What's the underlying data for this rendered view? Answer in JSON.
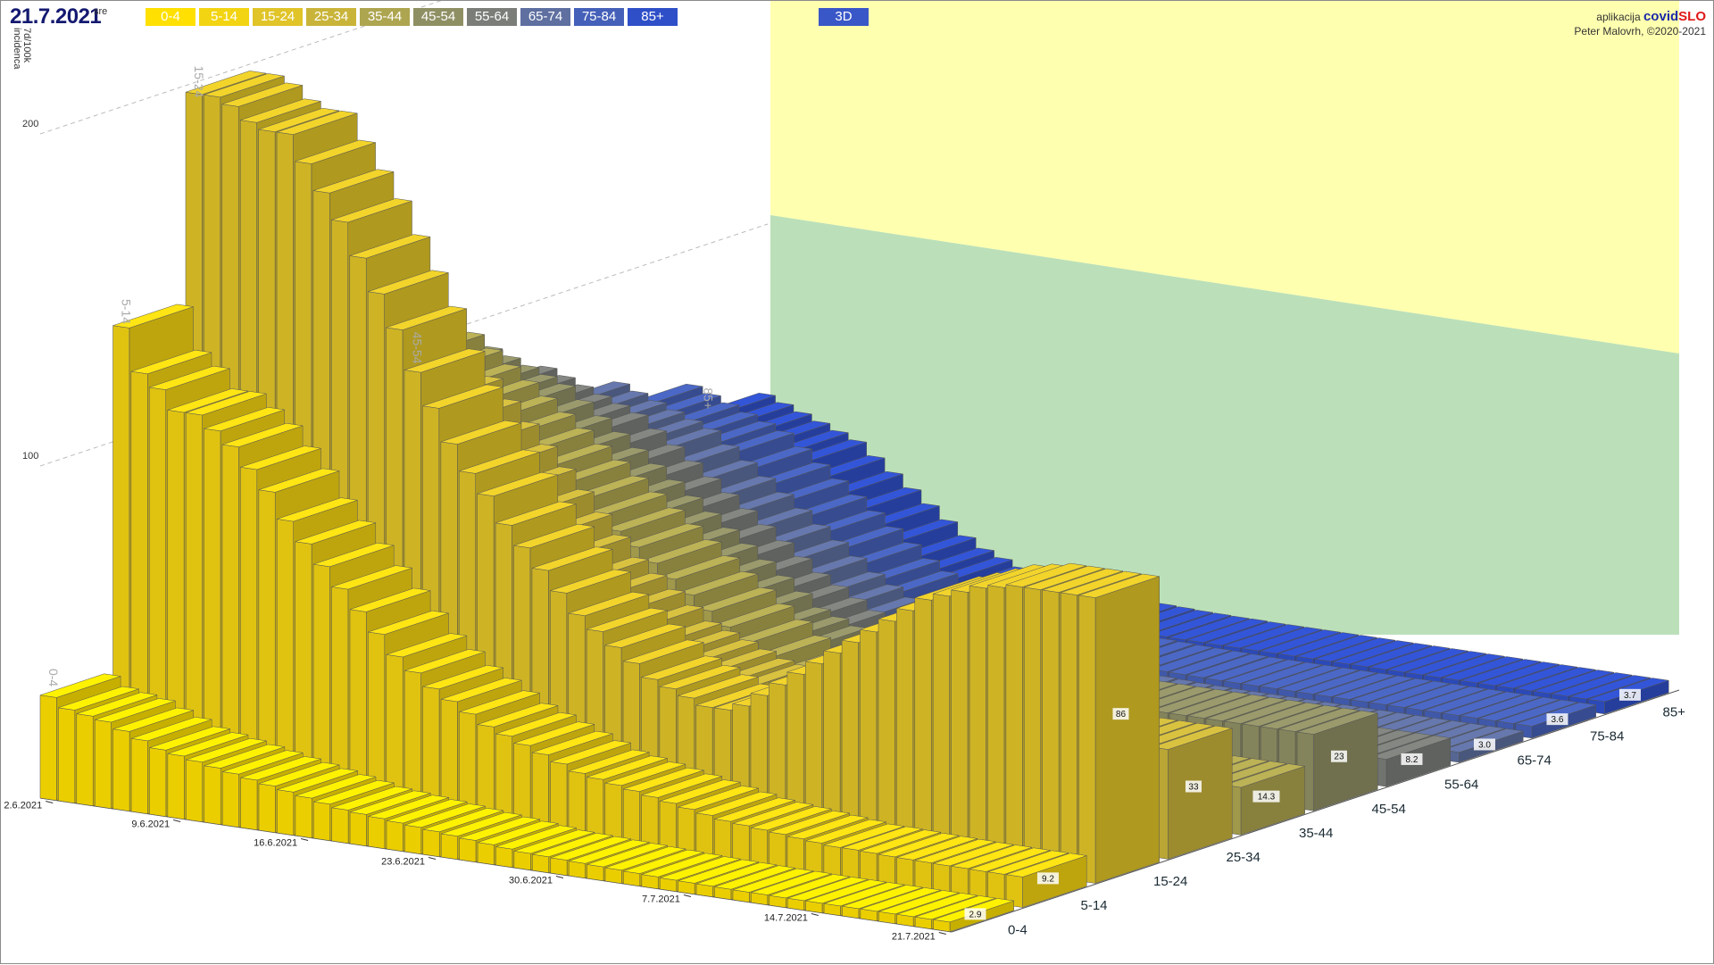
{
  "header": {
    "date": "21.7.2021",
    "weekday": "sre",
    "button_3d": "3D",
    "credit_prefix": "aplikacija",
    "brand_part1": "covid",
    "brand_part2": "SLO",
    "author": "Peter Malovrh, ©2020-2021"
  },
  "legend": [
    {
      "label": "0-4",
      "color": "#ffe000"
    },
    {
      "label": "5-14",
      "color": "#f3d412"
    },
    {
      "label": "15-24",
      "color": "#e0c428"
    },
    {
      "label": "25-34",
      "color": "#c9b43a"
    },
    {
      "label": "35-44",
      "color": "#aea550"
    },
    {
      "label": "45-54",
      "color": "#8f8f64"
    },
    {
      "label": "55-64",
      "color": "#7a7d78"
    },
    {
      "label": "65-74",
      "color": "#5e6fa0"
    },
    {
      "label": "75-84",
      "color": "#4560b8"
    },
    {
      "label": "85+",
      "color": "#2f4fc8"
    }
  ],
  "chart_data": {
    "type": "bar",
    "variant": "3d-bar-grid",
    "ylabel": "7d/100k incidenca",
    "y_ticks": [
      100,
      200
    ],
    "date_ticks": [
      "2.6.2021",
      "9.6.2021",
      "16.6.2021",
      "23.6.2021",
      "30.6.2021",
      "7.7.2021",
      "14.7.2021",
      "21.7.2021"
    ],
    "date_range": [
      "2.6.2021",
      "21.7.2021"
    ],
    "series": [
      {
        "name": "0-4",
        "values": [
          31,
          28,
          27,
          26,
          24,
          22,
          20,
          19,
          18,
          17,
          16,
          15,
          14,
          13,
          12,
          11,
          10,
          9.5,
          9,
          8.5,
          8,
          7.5,
          7,
          6.5,
          6,
          5.5,
          5,
          4.8,
          4.6,
          4.4,
          4.2,
          4,
          3.8,
          3.6,
          3.4,
          3.3,
          3.2,
          3.1,
          3,
          3,
          2.9,
          2.9,
          2.9,
          2.9,
          2.9,
          2.9,
          2.9,
          2.9,
          2.9,
          2.9
        ]
      },
      {
        "name": "5-14",
        "values": [
          135,
          122,
          118,
          112,
          112,
          108,
          104,
          98,
          92,
          84,
          78,
          72,
          66,
          60,
          54,
          48,
          44,
          40,
          37,
          34,
          31,
          29,
          27,
          25,
          23,
          21,
          20,
          19,
          18,
          17,
          16,
          15,
          14,
          13,
          12.5,
          12,
          11.5,
          11,
          10.5,
          10,
          10,
          9.8,
          9.6,
          9.5,
          9.4,
          9.3,
          9.3,
          9.2,
          9.2,
          9.2
        ]
      },
      {
        "name": "15-24",
        "values": [
          198,
          198,
          196,
          192,
          190,
          190,
          182,
          174,
          166,
          156,
          146,
          136,
          124,
          114,
          104,
          96,
          90,
          82,
          76,
          70,
          64,
          58,
          54,
          50,
          46,
          42,
          40,
          38,
          36,
          36,
          38,
          42,
          46,
          50,
          54,
          58,
          62,
          66,
          70,
          74,
          78,
          80,
          82,
          84,
          85,
          86,
          86,
          86,
          86,
          86
        ]
      },
      {
        "name": "25-34",
        "values": [
          150,
          146,
          142,
          138,
          134,
          130,
          124,
          118,
          112,
          106,
          100,
          94,
          88,
          82,
          76,
          70,
          64,
          58,
          54,
          50,
          46,
          42,
          40,
          38,
          36,
          34,
          33,
          32,
          32,
          32,
          32,
          32,
          33,
          33,
          33,
          33,
          33,
          33,
          33,
          33,
          33,
          33,
          33,
          33,
          33,
          33,
          33,
          33,
          33,
          33
        ]
      },
      {
        "name": "35-44",
        "values": [
          120,
          118,
          116,
          112,
          108,
          104,
          100,
          96,
          92,
          88,
          84,
          80,
          76,
          72,
          68,
          64,
          60,
          56,
          52,
          48,
          44,
          40,
          36,
          32,
          28,
          24,
          22,
          20,
          18,
          17,
          16,
          15,
          15,
          14.5,
          14.5,
          14.3,
          14.3,
          14.3,
          14.3,
          14.3,
          14.3,
          14.3,
          14.3,
          14.3,
          14.3,
          14.3,
          14.3,
          14.3,
          14.3,
          14.3
        ]
      },
      {
        "name": "45-54",
        "values": [
          96,
          94,
          92,
          90,
          88,
          86,
          82,
          78,
          74,
          70,
          66,
          62,
          58,
          54,
          50,
          46,
          42,
          38,
          34,
          30,
          28,
          26,
          24,
          23,
          23,
          23,
          23,
          23,
          23,
          23,
          23,
          23,
          23,
          23,
          23,
          23,
          23,
          23,
          23,
          23,
          23,
          23,
          23,
          23,
          23,
          23,
          23,
          23,
          23,
          23
        ]
      },
      {
        "name": "55-64",
        "values": [
          80,
          78,
          76,
          74,
          72,
          70,
          66,
          62,
          58,
          54,
          50,
          46,
          42,
          38,
          34,
          30,
          27,
          24,
          21,
          18,
          16,
          14,
          12,
          11,
          10,
          9.5,
          9,
          8.8,
          8.6,
          8.5,
          8.4,
          8.3,
          8.2,
          8.2,
          8.2,
          8.2,
          8.2,
          8.2,
          8.2,
          8.2,
          8.2,
          8.2,
          8.2,
          8.2,
          8.2,
          8.2,
          8.2,
          8.2,
          8.2,
          8.2
        ]
      },
      {
        "name": "65-74",
        "values": [
          68,
          66,
          64,
          62,
          60,
          58,
          54,
          50,
          46,
          42,
          38,
          34,
          30,
          26,
          22,
          19,
          16,
          14,
          12,
          10,
          9,
          8,
          7,
          6,
          5.5,
          5,
          4.5,
          4.2,
          4,
          3.8,
          3.6,
          3.4,
          3.2,
          3.1,
          3,
          3,
          3,
          3,
          3,
          3,
          3,
          3,
          3,
          3,
          3,
          3,
          3,
          3,
          3,
          3
        ]
      },
      {
        "name": "75-84",
        "values": [
          60,
          58,
          56,
          54,
          52,
          50,
          46,
          42,
          38,
          34,
          30,
          26,
          22,
          18,
          15,
          12,
          10,
          9,
          8,
          7,
          6.5,
          6,
          5.5,
          5,
          4.8,
          4.6,
          4.4,
          4.2,
          4,
          3.9,
          3.8,
          3.7,
          3.6,
          3.6,
          3.6,
          3.6,
          3.6,
          3.6,
          3.6,
          3.6,
          3.6,
          3.6,
          3.6,
          3.6,
          3.6,
          3.6,
          3.6,
          3.6,
          3.6,
          3.6
        ]
      },
      {
        "name": "85+",
        "values": [
          50,
          48,
          46,
          44,
          42,
          40,
          36,
          32,
          28,
          24,
          20,
          16,
          13,
          11,
          9,
          8,
          7,
          6,
          5.5,
          5,
          4.8,
          4.6,
          4.4,
          4.2,
          4,
          3.9,
          3.8,
          3.8,
          3.7,
          3.7,
          3.7,
          3.7,
          3.7,
          3.7,
          3.7,
          3.7,
          3.7,
          3.7,
          3.7,
          3.7,
          3.7,
          3.7,
          3.7,
          3.7,
          3.7,
          3.7,
          3.7,
          3.7,
          3.7,
          3.7
        ]
      }
    ],
    "last_value_labels": [
      "2.9",
      "9.2",
      "86",
      "33",
      "14.3",
      "23",
      "8.2",
      "3.0",
      "3.6",
      "3.7"
    ],
    "background_panels": [
      "#ffff96",
      "#a4d6a2"
    ]
  }
}
